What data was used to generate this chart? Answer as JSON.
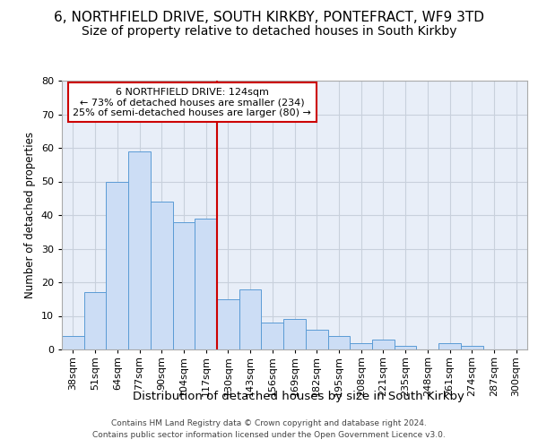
{
  "title1": "6, NORTHFIELD DRIVE, SOUTH KIRKBY, PONTEFRACT, WF9 3TD",
  "title2": "Size of property relative to detached houses in South Kirkby",
  "xlabel": "Distribution of detached houses by size in South Kirkby",
  "ylabel": "Number of detached properties",
  "bar_heights": [
    4,
    17,
    50,
    59,
    44,
    38,
    39,
    15,
    18,
    8,
    9,
    6,
    4,
    2,
    3,
    1,
    0,
    2,
    1,
    0,
    0
  ],
  "x_labels": [
    "38sqm",
    "51sqm",
    "64sqm",
    "77sqm",
    "90sqm",
    "104sqm",
    "117sqm",
    "130sqm",
    "143sqm",
    "156sqm",
    "169sqm",
    "182sqm",
    "195sqm",
    "208sqm",
    "221sqm",
    "235sqm",
    "248sqm",
    "261sqm",
    "274sqm",
    "287sqm",
    "300sqm"
  ],
  "bar_color": "#ccddf5",
  "bar_edge_color": "#5b9bd5",
  "vline_color": "#cc0000",
  "ylim": [
    0,
    80
  ],
  "yticks": [
    0,
    10,
    20,
    30,
    40,
    50,
    60,
    70,
    80
  ],
  "grid_color": "#c8d0dc",
  "bg_color": "#e8eef8",
  "ann_line1": "6 NORTHFIELD DRIVE: 124sqm",
  "ann_line2": "← 73% of detached houses are smaller (234)",
  "ann_line3": "25% of semi-detached houses are larger (80) →",
  "ann_box_color": "#cc0000",
  "footer1": "Contains HM Land Registry data © Crown copyright and database right 2024.",
  "footer2": "Contains public sector information licensed under the Open Government Licence v3.0.",
  "title1_fontsize": 11,
  "title2_fontsize": 10,
  "xlabel_fontsize": 9.5,
  "ylabel_fontsize": 8.5,
  "tick_fontsize": 8,
  "ann_fontsize": 8,
  "footer_fontsize": 6.5
}
